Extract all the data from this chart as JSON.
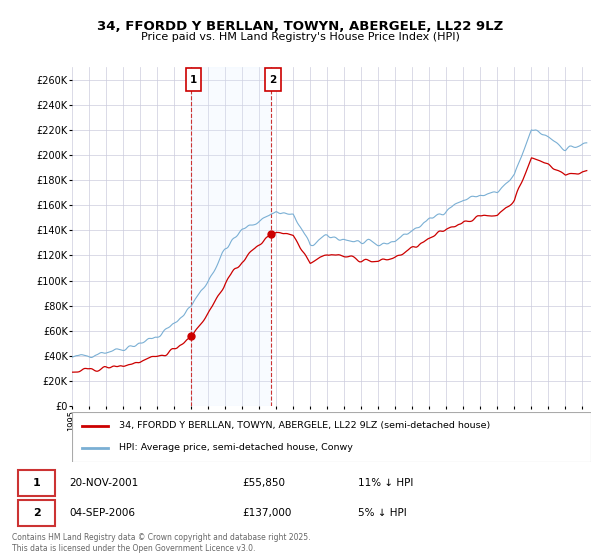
{
  "title": "34, FFORDD Y BERLLAN, TOWYN, ABERGELE, LL22 9LZ",
  "subtitle": "Price paid vs. HM Land Registry's House Price Index (HPI)",
  "ylabel_ticks": [
    "£0",
    "£20K",
    "£40K",
    "£60K",
    "£80K",
    "£100K",
    "£120K",
    "£140K",
    "£160K",
    "£180K",
    "£200K",
    "£220K",
    "£240K",
    "£260K"
  ],
  "ylim": [
    0,
    270000
  ],
  "yticks": [
    0,
    20000,
    40000,
    60000,
    80000,
    100000,
    120000,
    140000,
    160000,
    180000,
    200000,
    220000,
    240000,
    260000
  ],
  "xlim_start": 1995.0,
  "xlim_end": 2025.5,
  "transaction1_x": 2002.0,
  "transaction1_y": 55850,
  "transaction2_x": 2006.67,
  "transaction2_y": 137000,
  "legend_line1": "34, FFORDD Y BERLLAN, TOWYN, ABERGELE, LL22 9LZ (semi-detached house)",
  "legend_line2": "HPI: Average price, semi-detached house, Conwy",
  "footer": "Contains HM Land Registry data © Crown copyright and database right 2025.\nThis data is licensed under the Open Government Licence v3.0.",
  "color_sold": "#cc0000",
  "color_hpi": "#7aafd4",
  "color_vline": "#cc3333",
  "color_vfill": "#ddeeff",
  "background_color": "#ffffff",
  "grid_color": "#ccccdd"
}
